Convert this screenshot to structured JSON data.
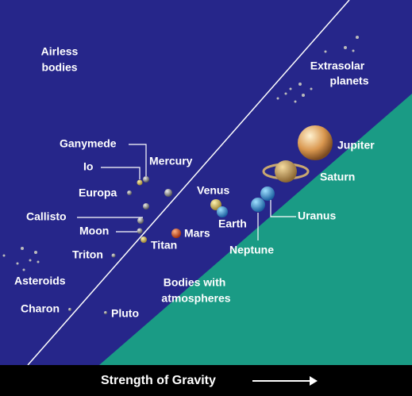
{
  "regions": {
    "airless": [
      "Airless",
      "bodies"
    ],
    "extrasolar": [
      "Extrasolar",
      "planets"
    ],
    "atmospheres": [
      "Bodies with",
      "atmospheres"
    ]
  },
  "bodies": [
    "Jupiter",
    "Saturn",
    "Uranus",
    "Neptune",
    "Venus",
    "Earth",
    "Mars",
    "Mercury",
    "Ganymede",
    "Io",
    "Europa",
    "Callisto",
    "Moon",
    "Titan",
    "Triton",
    "Asteroids",
    "Charon",
    "Pluto"
  ],
  "footer": "Strength of Gravity"
}
